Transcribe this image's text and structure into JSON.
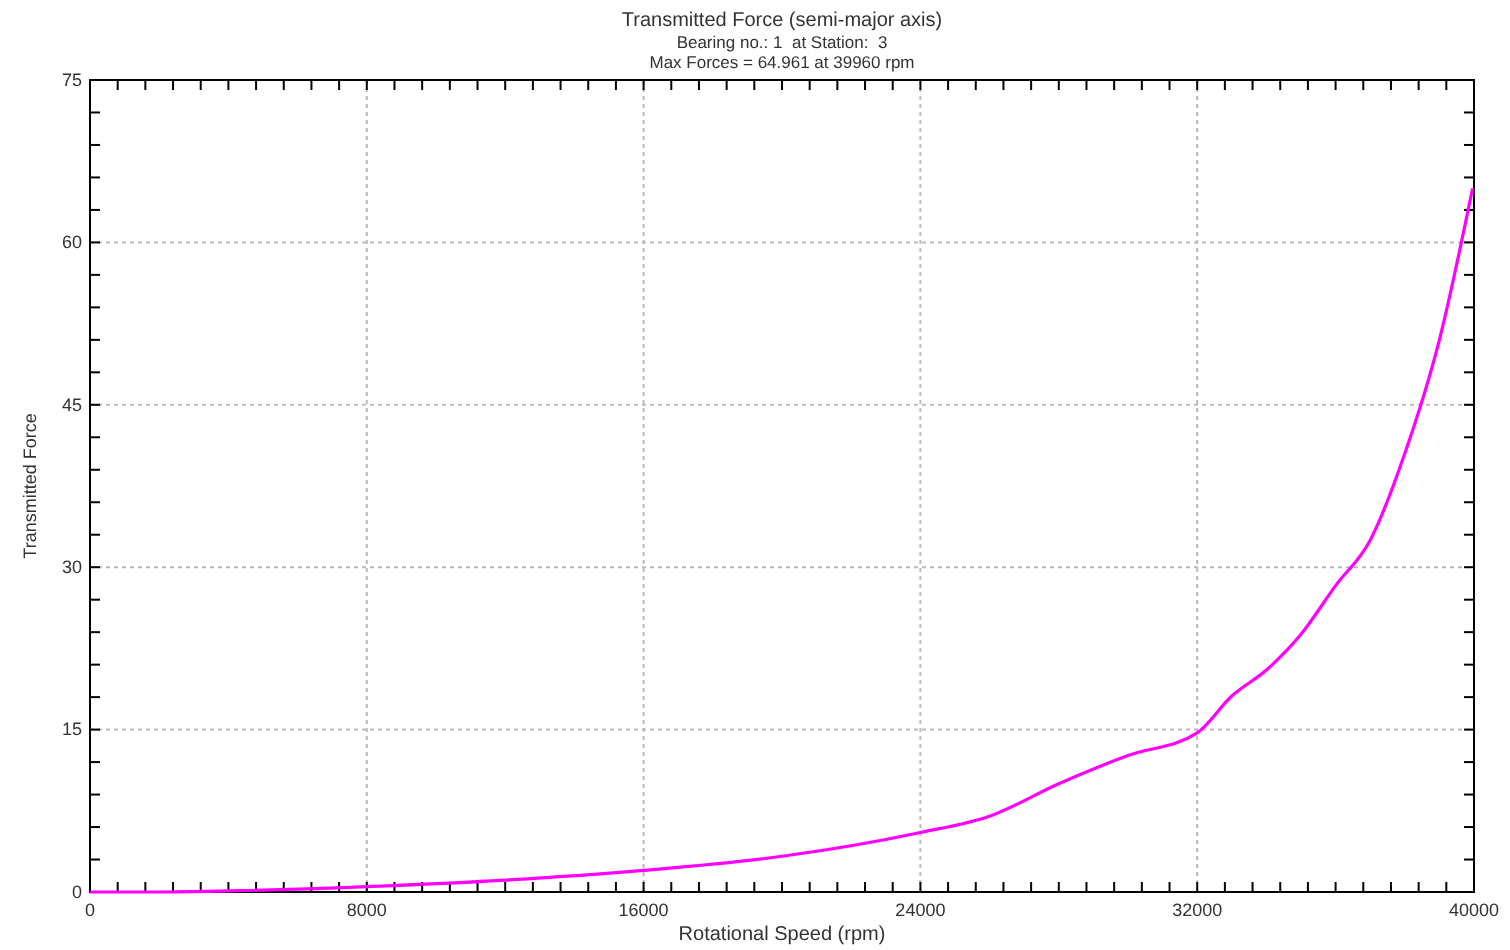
{
  "chart_data": {
    "type": "line",
    "title": "Transmitted Force (semi-major axis)",
    "subtitle": "Bearing no.: 1  at Station:  3\nMax Forces = 64.961 at 39960 rpm",
    "xlabel": "Rotational Speed (rpm)",
    "ylabel": "Transmitted Force",
    "x": [
      0,
      2000,
      4000,
      8000,
      12000,
      16000,
      20000,
      24000,
      26000,
      28000,
      30000,
      32000,
      33000,
      34000,
      35000,
      36000,
      37000,
      38000,
      39000,
      39960
    ],
    "series": [
      {
        "color": "#ff00ff",
        "values": [
          0,
          0,
          0.1,
          0.5,
          1.1,
          2.0,
          3.3,
          5.5,
          7.0,
          10.0,
          12.6,
          14.7,
          18.1,
          20.5,
          23.8,
          28.3,
          32.5,
          40.5,
          51,
          65
        ]
      }
    ],
    "xlim": [
      0,
      40000
    ],
    "ylim": [
      0,
      75
    ],
    "xticks": [
      0,
      {
        "value": 800,
        "label": null
      },
      {
        "value": 1600,
        "label": null
      },
      {
        "value": 2400,
        "label": null
      },
      {
        "value": 3200,
        "label": null
      },
      {
        "value": 4000,
        "label": null
      },
      {
        "value": 4800,
        "label": null
      },
      {
        "value": 5600,
        "label": null
      },
      {
        "value": 6400,
        "label": null
      },
      {
        "value": 7200,
        "label": null
      },
      8000,
      {
        "value": 8800,
        "label": null
      },
      {
        "value": 9600,
        "label": null
      },
      {
        "value": 10400,
        "label": null
      },
      {
        "value": 11200,
        "label": null
      },
      {
        "value": 12000,
        "label": null
      },
      {
        "value": 12800,
        "label": null
      },
      {
        "value": 13600,
        "label": null
      },
      {
        "value": 14400,
        "label": null
      },
      {
        "value": 15200,
        "label": null
      },
      16000,
      {
        "value": 16800,
        "label": null
      },
      {
        "value": 17600,
        "label": null
      },
      {
        "value": 18400,
        "label": null
      },
      {
        "value": 19200,
        "label": null
      },
      {
        "value": 20000,
        "label": null
      },
      {
        "value": 20800,
        "label": null
      },
      {
        "value": 21600,
        "label": null
      },
      {
        "value": 22400,
        "label": null
      },
      {
        "value": 23200,
        "label": null
      },
      24000,
      {
        "value": 24800,
        "label": null
      },
      {
        "value": 25600,
        "label": null
      },
      {
        "value": 26400,
        "label": null
      },
      {
        "value": 27200,
        "label": null
      },
      {
        "value": 28000,
        "label": null
      },
      {
        "value": 28800,
        "label": null
      },
      {
        "value": 29600,
        "label": null
      },
      {
        "value": 30400,
        "label": null
      },
      {
        "value": 31200,
        "label": null
      },
      32000,
      {
        "value": 32800,
        "label": null
      },
      {
        "value": 33600,
        "label": null
      },
      {
        "value": 34400,
        "label": null
      },
      {
        "value": 35200,
        "label": null
      },
      {
        "value": 36000,
        "label": null
      },
      {
        "value": 36800,
        "label": null
      },
      {
        "value": 37600,
        "label": null
      },
      {
        "value": 38400,
        "label": null
      },
      {
        "value": 39200,
        "label": null
      },
      40000
    ],
    "yticks": [
      0,
      {
        "value": 3,
        "label": null
      },
      {
        "value": 6,
        "label": null
      },
      {
        "value": 9,
        "label": null
      },
      {
        "value": 12,
        "label": null
      },
      15,
      {
        "value": 18,
        "label": null
      },
      {
        "value": 21,
        "label": null
      },
      {
        "value": 24,
        "label": null
      },
      {
        "value": 27,
        "label": null
      },
      30,
      {
        "value": 33,
        "label": null
      },
      {
        "value": 36,
        "label": null
      },
      {
        "value": 39,
        "label": null
      },
      {
        "value": 42,
        "label": null
      },
      45,
      {
        "value": 48,
        "label": null
      },
      {
        "value": 51,
        "label": null
      },
      {
        "value": 54,
        "label": null
      },
      {
        "value": 57,
        "label": null
      },
      60,
      {
        "value": 63,
        "label": null
      },
      {
        "value": 66,
        "label": null
      },
      {
        "value": 69,
        "label": null
      },
      {
        "value": 72,
        "label": null
      },
      75
    ],
    "grid": true,
    "line_style": "solid"
  }
}
